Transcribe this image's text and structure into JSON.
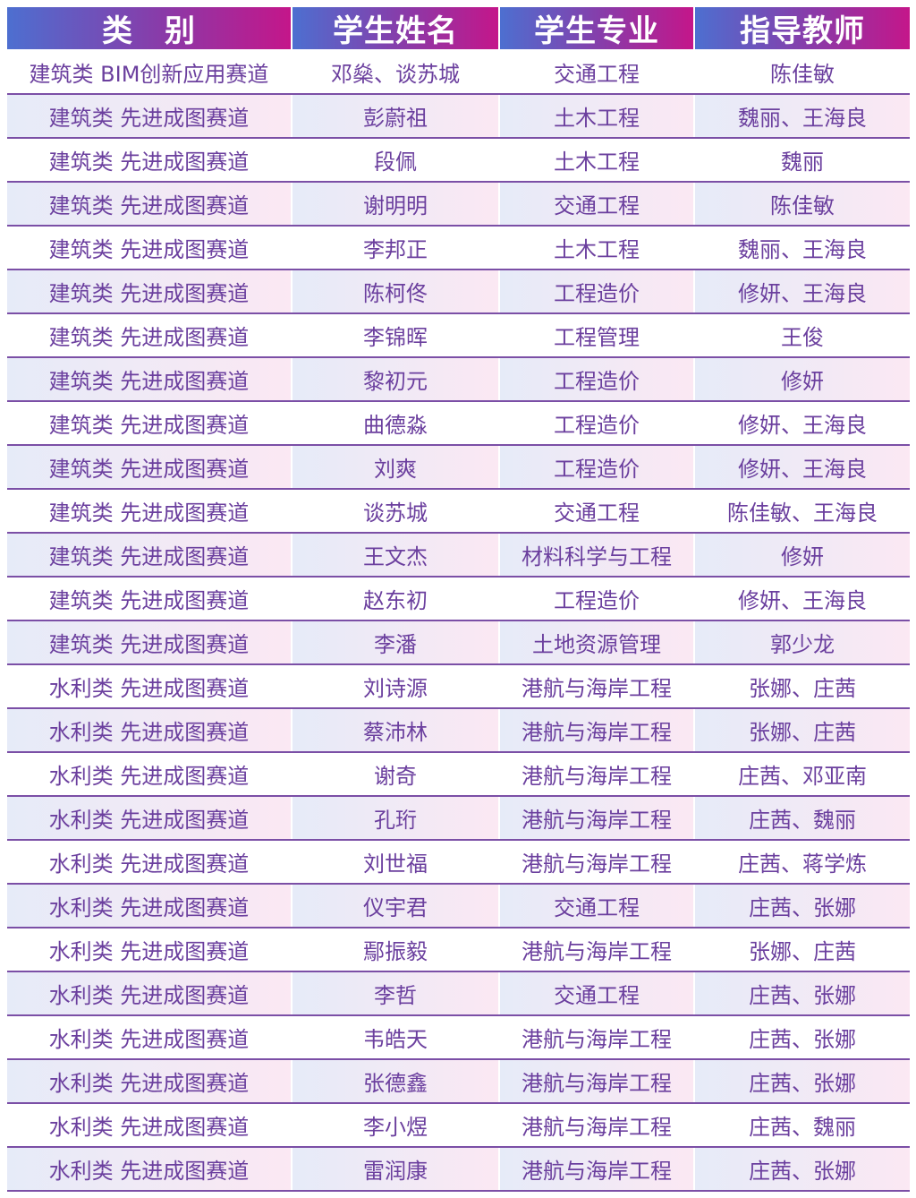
{
  "header": [
    "类　别",
    "学生姓名",
    "学生专业",
    "指导教师"
  ],
  "colors": {
    "header_start": "#4d6fd0",
    "header_end": "#c4168a",
    "text": "#6b3f9e",
    "rule": "#7b4fa6"
  },
  "rows": [
    [
      "建筑类 BIM创新应用赛道",
      "邓燊、谈苏城",
      "交通工程",
      "陈佳敏"
    ],
    [
      "建筑类 先进成图赛道",
      "彭蔚祖",
      "土木工程",
      "魏丽、王海良"
    ],
    [
      "建筑类 先进成图赛道",
      "段佩",
      "土木工程",
      "魏丽"
    ],
    [
      "建筑类 先进成图赛道",
      "谢明明",
      "交通工程",
      "陈佳敏"
    ],
    [
      "建筑类 先进成图赛道",
      "李邦正",
      "土木工程",
      "魏丽、王海良"
    ],
    [
      "建筑类 先进成图赛道",
      "陈柯佟",
      "工程造价",
      "修妍、王海良"
    ],
    [
      "建筑类 先进成图赛道",
      "李锦晖",
      "工程管理",
      "王俊"
    ],
    [
      "建筑类 先进成图赛道",
      "黎初元",
      "工程造价",
      "修妍"
    ],
    [
      "建筑类 先进成图赛道",
      "曲德淼",
      "工程造价",
      "修妍、王海良"
    ],
    [
      "建筑类 先进成图赛道",
      "刘爽",
      "工程造价",
      "修妍、王海良"
    ],
    [
      "建筑类 先进成图赛道",
      "谈苏城",
      "交通工程",
      "陈佳敏、王海良"
    ],
    [
      "建筑类 先进成图赛道",
      "王文杰",
      "材料科学与工程",
      "修妍"
    ],
    [
      "建筑类 先进成图赛道",
      "赵东初",
      "工程造价",
      "修妍、王海良"
    ],
    [
      "建筑类 先进成图赛道",
      "李潘",
      "土地资源管理",
      "郭少龙"
    ],
    [
      "水利类 先进成图赛道",
      "刘诗源",
      "港航与海岸工程",
      "张娜、庄茜"
    ],
    [
      "水利类 先进成图赛道",
      "蔡沛林",
      "港航与海岸工程",
      "张娜、庄茜"
    ],
    [
      "水利类 先进成图赛道",
      "谢奇",
      "港航与海岸工程",
      "庄茜、邓亚南"
    ],
    [
      "水利类 先进成图赛道",
      "孔珩",
      "港航与海岸工程",
      "庄茜、魏丽"
    ],
    [
      "水利类 先进成图赛道",
      "刘世福",
      "港航与海岸工程",
      "庄茜、蒋学炼"
    ],
    [
      "水利类 先进成图赛道",
      "仪宇君",
      "交通工程",
      "庄茜、张娜"
    ],
    [
      "水利类 先进成图赛道",
      "鄢振毅",
      "港航与海岸工程",
      "张娜、庄茜"
    ],
    [
      "水利类 先进成图赛道",
      "李哲",
      "交通工程",
      "庄茜、张娜"
    ],
    [
      "水利类 先进成图赛道",
      "韦皓天",
      "港航与海岸工程",
      "庄茜、张娜"
    ],
    [
      "水利类 先进成图赛道",
      "张德鑫",
      "港航与海岸工程",
      "庄茜、张娜"
    ],
    [
      "水利类 先进成图赛道",
      "李小煜",
      "港航与海岸工程",
      "庄茜、魏丽"
    ],
    [
      "水利类 先进成图赛道",
      "雷润康",
      "港航与海岸工程",
      "庄茜、张娜"
    ]
  ]
}
